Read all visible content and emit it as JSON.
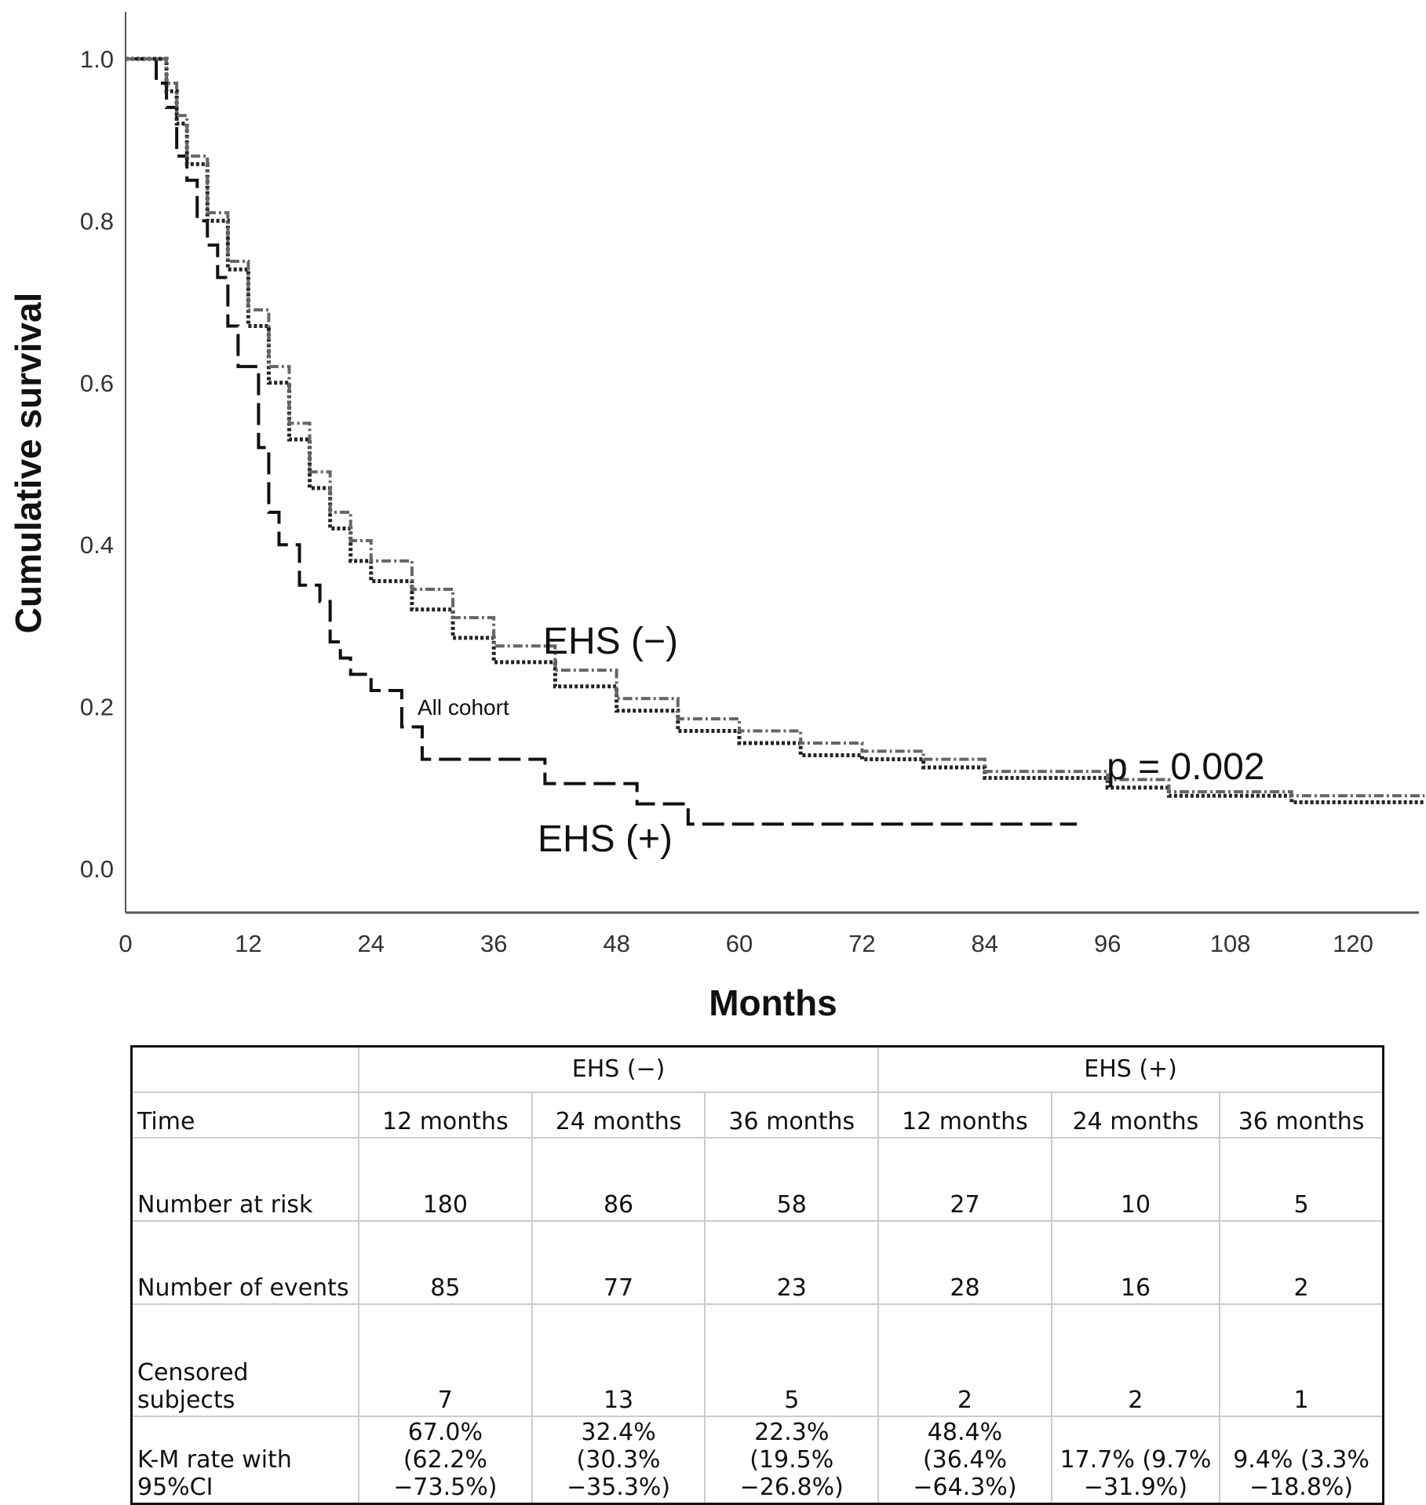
{
  "chart_data": {
    "type": "line",
    "subtype": "kaplan-meier step",
    "xlabel": "Months",
    "ylabel": "Cumulative survival",
    "xlim": [
      0,
      127
    ],
    "ylim": [
      -0.05,
      1.05
    ],
    "xticks": [
      "0",
      "12",
      "24",
      "36",
      "48",
      "60",
      "72",
      "84",
      "96",
      "108",
      "120"
    ],
    "yticks": [
      "0.0",
      "0.2",
      "0.4",
      "0.6",
      "0.8",
      "1.0"
    ],
    "annotations": {
      "ehs_neg": "EHS (−)",
      "ehs_pos": "EHS (+)",
      "all": "All cohort",
      "p": "p = 0.002"
    },
    "series": [
      {
        "name": "EHS (+)",
        "style": "dashed",
        "points": [
          [
            0,
            1
          ],
          [
            3,
            0.97
          ],
          [
            4,
            0.94
          ],
          [
            5,
            0.88
          ],
          [
            6,
            0.85
          ],
          [
            7,
            0.8
          ],
          [
            8,
            0.77
          ],
          [
            9,
            0.73
          ],
          [
            10,
            0.67
          ],
          [
            11,
            0.62
          ],
          [
            13,
            0.52
          ],
          [
            14,
            0.44
          ],
          [
            15,
            0.4
          ],
          [
            17,
            0.35
          ],
          [
            19,
            0.33
          ],
          [
            20,
            0.28
          ],
          [
            21,
            0.26
          ],
          [
            22,
            0.24
          ],
          [
            24,
            0.22
          ],
          [
            27,
            0.175
          ],
          [
            29,
            0.135
          ],
          [
            41,
            0.105
          ],
          [
            50,
            0.08
          ],
          [
            55,
            0.055
          ],
          [
            93,
            0.055
          ]
        ]
      },
      {
        "name": "All cohort",
        "style": "dotted",
        "points": [
          [
            0,
            1
          ],
          [
            3,
            1
          ],
          [
            4,
            0.96
          ],
          [
            5,
            0.92
          ],
          [
            6,
            0.87
          ],
          [
            8,
            0.8
          ],
          [
            10,
            0.74
          ],
          [
            12,
            0.67
          ],
          [
            14,
            0.6
          ],
          [
            16,
            0.53
          ],
          [
            18,
            0.47
          ],
          [
            20,
            0.42
          ],
          [
            22,
            0.38
          ],
          [
            24,
            0.355
          ],
          [
            28,
            0.32
          ],
          [
            32,
            0.285
          ],
          [
            36,
            0.255
          ],
          [
            42,
            0.225
          ],
          [
            48,
            0.195
          ],
          [
            54,
            0.17
          ],
          [
            60,
            0.155
          ],
          [
            66,
            0.14
          ],
          [
            72,
            0.135
          ],
          [
            78,
            0.125
          ],
          [
            84,
            0.112
          ],
          [
            96,
            0.1
          ],
          [
            102,
            0.09
          ],
          [
            114,
            0.082
          ],
          [
            127,
            0.082
          ]
        ]
      },
      {
        "name": "EHS (−)",
        "style": "dashdot",
        "points": [
          [
            0,
            1
          ],
          [
            3,
            1
          ],
          [
            4,
            0.97
          ],
          [
            5,
            0.93
          ],
          [
            6,
            0.88
          ],
          [
            8,
            0.81
          ],
          [
            10,
            0.75
          ],
          [
            12,
            0.69
          ],
          [
            14,
            0.62
          ],
          [
            16,
            0.55
          ],
          [
            18,
            0.49
          ],
          [
            20,
            0.44
          ],
          [
            22,
            0.405
          ],
          [
            24,
            0.38
          ],
          [
            28,
            0.345
          ],
          [
            32,
            0.31
          ],
          [
            36,
            0.275
          ],
          [
            42,
            0.245
          ],
          [
            48,
            0.21
          ],
          [
            54,
            0.185
          ],
          [
            60,
            0.17
          ],
          [
            66,
            0.155
          ],
          [
            72,
            0.145
          ],
          [
            78,
            0.135
          ],
          [
            84,
            0.12
          ],
          [
            96,
            0.11
          ],
          [
            102,
            0.095
          ],
          [
            114,
            0.09
          ],
          [
            127,
            0.09
          ]
        ]
      }
    ]
  },
  "table": {
    "groups": [
      "EHS (−)",
      "EHS (+)"
    ],
    "rows": [
      {
        "label": "Time",
        "cells": [
          "12 months",
          "24 months",
          "36 months",
          "12 months",
          "24 months",
          "36 months"
        ]
      },
      {
        "label": "Number at risk",
        "cells": [
          "180",
          "86",
          "58",
          "27",
          "10",
          "5"
        ]
      },
      {
        "label": "Number of events",
        "cells": [
          "85",
          "77",
          "23",
          "28",
          "16",
          "2"
        ]
      },
      {
        "label": "Censored subjects",
        "cells": [
          "7",
          "13",
          "5",
          "2",
          "2",
          "1"
        ]
      },
      {
        "label": "K-M rate with 95%CI",
        "cells": [
          "67.0% (62.2% −73.5%)",
          "32.4% (30.3% −35.3%)",
          "22.3% (19.5% −26.8%)",
          "48.4% (36.4% −64.3%)",
          "17.7% (9.7% −31.9%)",
          "9.4% (3.3% −18.8%)"
        ]
      }
    ]
  }
}
